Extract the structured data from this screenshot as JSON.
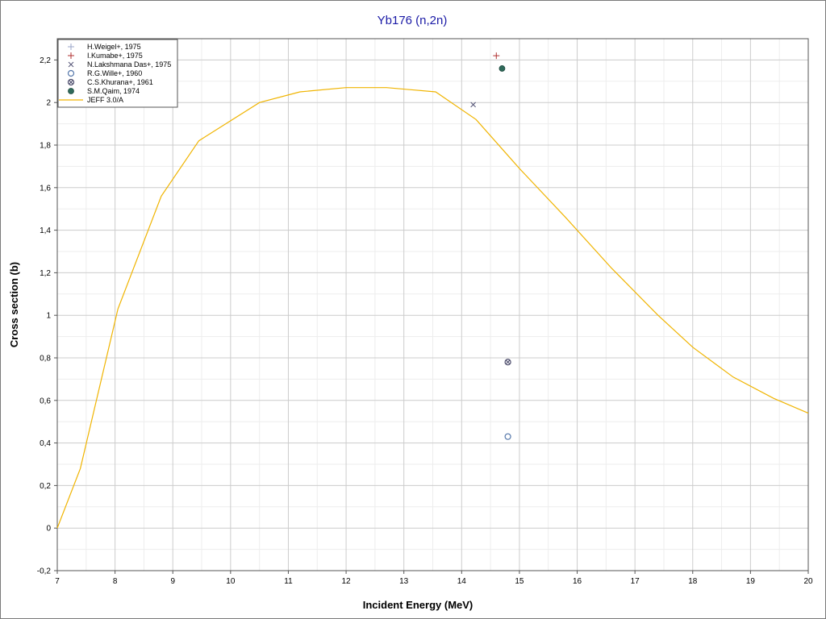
{
  "chart_data": {
    "type": "scatter",
    "title": "Yb176 (n,2n)",
    "xlabel": "Incident Energy (MeV)",
    "ylabel": "Cross section (b)",
    "xlim": [
      7,
      20
    ],
    "ylim": [
      -0.2,
      2.3
    ],
    "x_ticks": [
      "7",
      "8",
      "9",
      "10",
      "11",
      "12",
      "13",
      "14",
      "15",
      "16",
      "17",
      "18",
      "19",
      "20"
    ],
    "y_ticks": [
      "-0,2",
      "0",
      "0,2",
      "0,4",
      "0,6",
      "0,8",
      "1",
      "1,2",
      "1,4",
      "1,6",
      "1,8",
      "2",
      "2,2"
    ],
    "grid": true,
    "legend_position": "top-left",
    "series": [
      {
        "name": "H.Weigel+, 1975",
        "marker": "plus-light",
        "color": "#9aa6c8",
        "points": []
      },
      {
        "name": "I.Kumabe+, 1975",
        "marker": "plus",
        "color": "#b03030",
        "points": [
          [
            14.6,
            2.22
          ]
        ]
      },
      {
        "name": "N.Lakshmana Das+, 1975",
        "marker": "cross",
        "color": "#555577",
        "points": [
          [
            14.2,
            1.99
          ]
        ]
      },
      {
        "name": "R.G.Wille+, 1960",
        "marker": "open-circle",
        "color": "#5577aa",
        "points": [
          [
            14.8,
            0.43
          ]
        ]
      },
      {
        "name": "C.S.Khurana+, 1961",
        "marker": "crossed-circle",
        "color": "#4a4a6a",
        "points": [
          [
            14.8,
            0.78
          ]
        ]
      },
      {
        "name": "S.M.Qaim, 1974",
        "marker": "filled-circle",
        "color": "#2f6a5a",
        "points": [
          [
            14.7,
            2.16
          ]
        ]
      },
      {
        "name": "JEFF 3.0/A",
        "marker": "line",
        "color": "#f0b400",
        "points": [
          [
            7.0,
            0.0
          ],
          [
            7.4,
            0.28
          ],
          [
            8.05,
            1.03
          ],
          [
            8.8,
            1.56
          ],
          [
            9.45,
            1.82
          ],
          [
            10.5,
            2.0
          ],
          [
            11.2,
            2.05
          ],
          [
            12.0,
            2.07
          ],
          [
            12.7,
            2.07
          ],
          [
            13.55,
            2.05
          ],
          [
            14.25,
            1.92
          ],
          [
            15.0,
            1.69
          ],
          [
            15.8,
            1.46
          ],
          [
            16.6,
            1.22
          ],
          [
            17.4,
            1.0
          ],
          [
            18.0,
            0.85
          ],
          [
            18.7,
            0.71
          ],
          [
            19.4,
            0.61
          ],
          [
            20.0,
            0.54
          ]
        ]
      }
    ]
  }
}
